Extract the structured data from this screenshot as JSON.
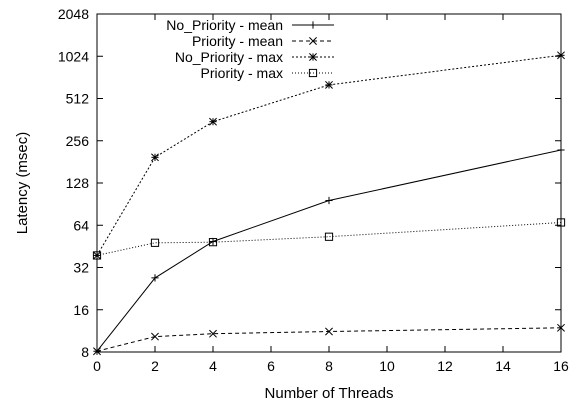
{
  "chart_data": {
    "type": "line",
    "title": "",
    "xlabel": "Number of Threads",
    "ylabel": "Latency (msec)",
    "x_scale": "linear",
    "y_scale": "log2",
    "xlim": [
      0,
      16
    ],
    "ylim": [
      8,
      2048
    ],
    "xticks": [
      0,
      2,
      4,
      6,
      8,
      10,
      12,
      14,
      16
    ],
    "yticks": [
      8,
      16,
      32,
      64,
      128,
      256,
      512,
      1024,
      2048
    ],
    "grid": false,
    "legend_position": "top-left",
    "series": [
      {
        "name": "No_Priority - mean",
        "marker": "plus",
        "line": "solid",
        "x": [
          0,
          2,
          4,
          8,
          16
        ],
        "y": [
          8.1,
          27,
          49,
          96,
          220
        ]
      },
      {
        "name": "Priority - mean",
        "marker": "x",
        "line": "dashed",
        "x": [
          0,
          2,
          4,
          8,
          16
        ],
        "y": [
          8.1,
          10.3,
          10.8,
          11.2,
          11.9
        ]
      },
      {
        "name": "No_Priority - max",
        "marker": "star",
        "line": "dotted",
        "x": [
          0,
          2,
          4,
          8,
          16
        ],
        "y": [
          39,
          195,
          350,
          640,
          1040
        ]
      },
      {
        "name": "Priority - max",
        "marker": "square",
        "line": "fine-dotted",
        "x": [
          0,
          2,
          4,
          8,
          16
        ],
        "y": [
          39,
          48,
          48.5,
          53,
          67
        ]
      }
    ]
  }
}
